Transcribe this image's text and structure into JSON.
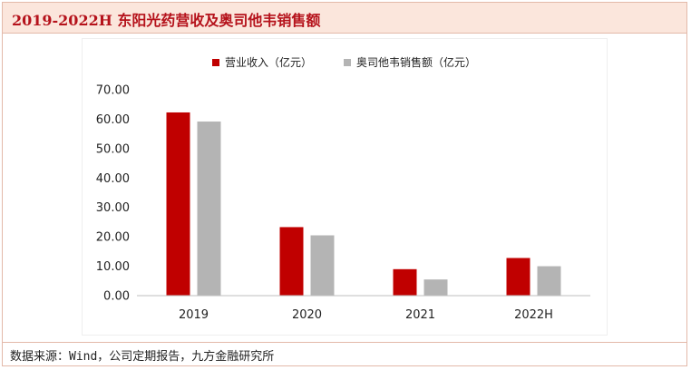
{
  "header": {
    "title": "2019-2022H 东阳光药营收及奥司他韦销售额"
  },
  "footer": {
    "source": "数据来源：Wind，公司定期报告，九方金融研究所"
  },
  "colors": {
    "series_revenue": "#c00000",
    "series_oseltamivir": "#b4b4b4",
    "title": "#b5121b"
  },
  "chart_data": {
    "type": "bar",
    "categories": [
      "2019",
      "2020",
      "2021",
      "2022H"
    ],
    "series": [
      {
        "name": "营业收入（亿元）",
        "values": [
          62.3,
          23.3,
          9.0,
          12.8
        ]
      },
      {
        "name": "奥司他韦销售额（亿元）",
        "values": [
          59.2,
          20.5,
          5.5,
          10.0
        ]
      }
    ],
    "ylim": [
      0,
      70
    ],
    "yticks": [
      "0.00",
      "10.00",
      "20.00",
      "30.00",
      "40.00",
      "50.00",
      "60.00",
      "70.00"
    ],
    "legend": "top",
    "grid": false,
    "xlabel": "",
    "ylabel": ""
  }
}
